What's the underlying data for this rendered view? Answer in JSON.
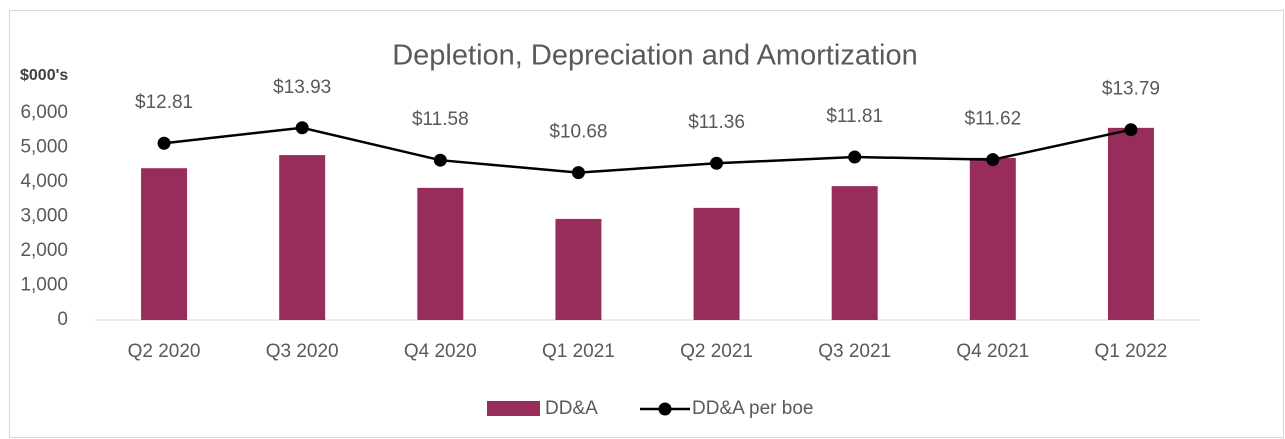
{
  "chart_data": {
    "type": "bar",
    "title": "Depletion, Depreciation and Amortization",
    "y_label": "$000's",
    "categories": [
      "Q2 2020",
      "Q3 2020",
      "Q4 2020",
      "Q1 2021",
      "Q2 2021",
      "Q3 2021",
      "Q4 2021",
      "Q1 2022"
    ],
    "series": [
      {
        "name": "DD&A",
        "type": "bar",
        "color": "#982d5b",
        "values": [
          4400,
          4780,
          3830,
          2930,
          3250,
          3880,
          4700,
          5570
        ]
      },
      {
        "name": "DD&A per boe",
        "type": "line",
        "axis": "y2",
        "color": "#000000",
        "values": [
          12.81,
          13.93,
          11.58,
          10.68,
          11.36,
          11.81,
          11.62,
          13.79
        ],
        "value_labels": [
          "$12.81",
          "$13.93",
          "$11.58",
          "$10.68",
          "$11.36",
          "$11.81",
          "$11.62",
          "$13.79"
        ]
      }
    ],
    "ylim": [
      0,
      6000
    ],
    "yticks": [
      0,
      {
        "value": 1000,
        "label": "1,000"
      },
      {
        "value": 2000,
        "label": "2,000"
      },
      {
        "value": 3000,
        "label": "3,000"
      },
      {
        "value": 4000,
        "label": "4,000"
      },
      {
        "value": 5000,
        "label": "5,000"
      },
      {
        "value": 6000,
        "label": "6,000"
      }
    ],
    "y2lim": [
      0,
      15
    ],
    "grid": false,
    "legend": "bottom"
  }
}
